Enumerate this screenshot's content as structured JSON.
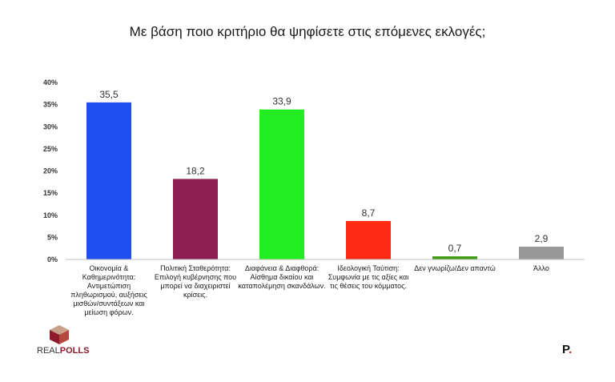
{
  "title": "Με βάση ποιο κριτήριο θα ψηφίσετε στις επόμενες εκλογές;",
  "chart_data": {
    "type": "bar",
    "title": "Με βάση ποιο κριτήριο θα ψηφίσετε στις επόμενες εκλογές;",
    "categories": [
      "Οικονομία & Καθημερινότητα: Αντιμετώπιση πληθωρισμού, αυξήσεις μισθών/συντάξεων και μείωση φόρων.",
      "Πολιτική Σταθερότητα: Επιλογή κυβέρνησης που μπορεί να διαχειριστεί κρίσεις.",
      "Διαφάνεια & Διαφθορά: Αίσθημα δικαίου και καταπολέμηση σκανδάλων.",
      "Ιδεολογική Ταύτιση: Συμφωνία με τις αξίες και τις θέσεις του κόμματος.",
      "Δεν γνωρίζω/Δεν απαντώ",
      "Άλλο"
    ],
    "values": [
      35.5,
      18.2,
      33.9,
      8.7,
      0.7,
      2.9
    ],
    "value_labels": [
      "35,5",
      "18,2",
      "33,9",
      "8,7",
      "0,7",
      "2,9"
    ],
    "colors": [
      "#1f4ff0",
      "#8e1f52",
      "#22ee22",
      "#ff2a12",
      "#3e9a12",
      "#999999"
    ],
    "y_ticks": [
      "0%",
      "5%",
      "10%",
      "15%",
      "20%",
      "25%",
      "30%",
      "35%",
      "40%"
    ],
    "ylim": [
      0,
      40
    ],
    "grid": false,
    "legend": "none"
  },
  "logos": {
    "left_a": "REAL",
    "left_b": "POLLS",
    "right": "P",
    "right_dot": "."
  }
}
